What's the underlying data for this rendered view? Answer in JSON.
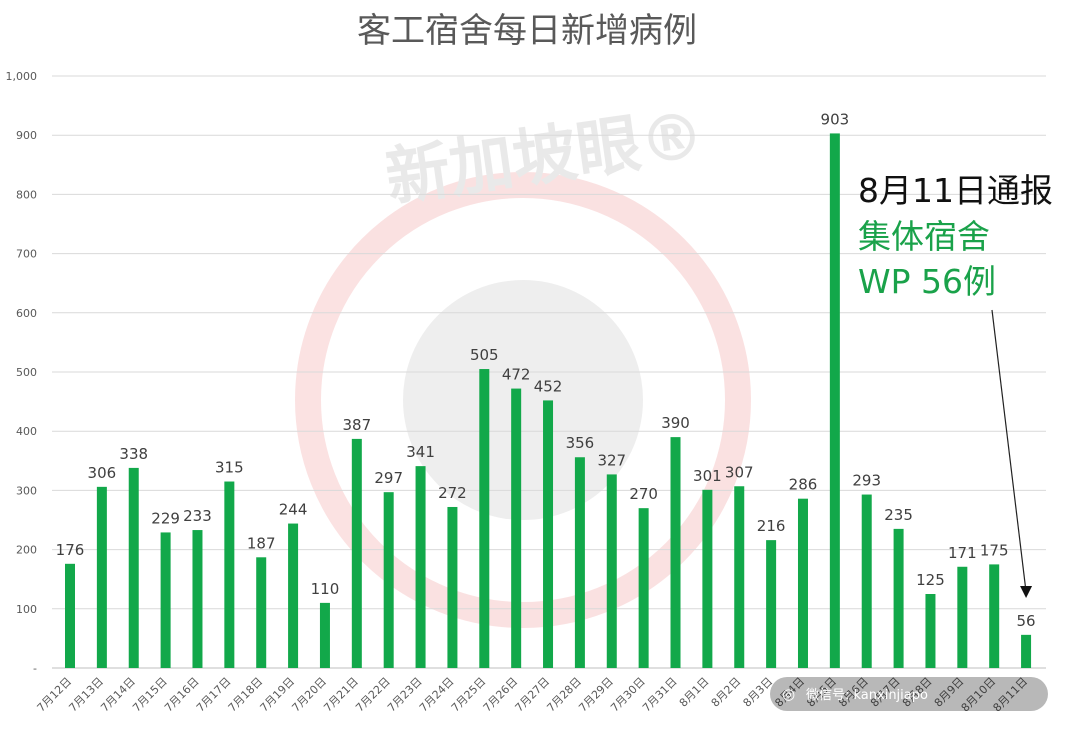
{
  "chart_data": {
    "type": "bar",
    "title": "客工宿舍每日新增病例",
    "xlabel": "",
    "ylabel": "",
    "ylim": [
      0,
      1000
    ],
    "y_ticks": [
      "-",
      "100",
      "200",
      "300",
      "400",
      "500",
      "600",
      "700",
      "800",
      "900",
      "1,000"
    ],
    "grid": true,
    "bar_color": "#12a84a",
    "categories": [
      "7月12日",
      "7月13日",
      "7月14日",
      "7月15日",
      "7月16日",
      "7月17日",
      "7月18日",
      "7月19日",
      "7月20日",
      "7月21日",
      "7月22日",
      "7月23日",
      "7月24日",
      "7月25日",
      "7月26日",
      "7月27日",
      "7月28日",
      "7月29日",
      "7月30日",
      "7月31日",
      "8月1日",
      "8月2日",
      "8月3日",
      "8月4日",
      "8月5日",
      "8月6日",
      "8月7日",
      "8月8日",
      "8月9日",
      "8月10日",
      "8月11日"
    ],
    "values": [
      176,
      306,
      338,
      229,
      233,
      315,
      187,
      244,
      110,
      387,
      297,
      341,
      272,
      505,
      472,
      452,
      356,
      327,
      270,
      390,
      301,
      307,
      216,
      286,
      903,
      293,
      235,
      125,
      171,
      175,
      56
    ],
    "annotation": {
      "line1": "8月11日通报",
      "line2": "集体宿舍",
      "line3": "WP 56例",
      "line1_color": "#111111",
      "accent_color": "#1aa24a"
    },
    "watermark": {
      "text": "新加坡眼®",
      "badge": "微信号: kanxinjiapo"
    }
  }
}
